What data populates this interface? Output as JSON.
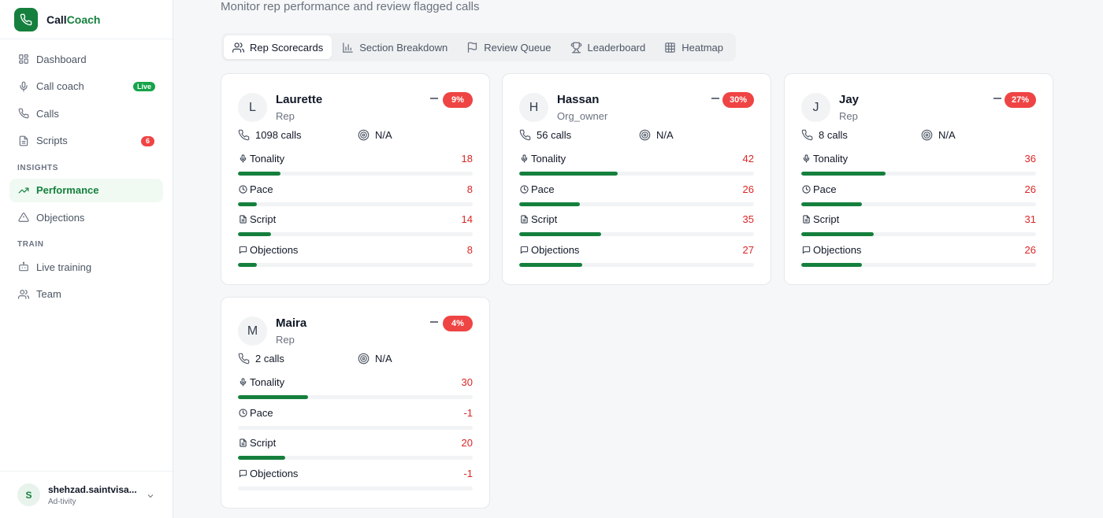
{
  "app": {
    "brand_prefix": "Call",
    "brand_accent": "Coach"
  },
  "colors": {
    "accent": "#15803d",
    "danger": "#ef4444",
    "bar_track": "#f1f3f5"
  },
  "sidebar": {
    "items": [
      {
        "label": "Dashboard",
        "icon": "dashboard-icon"
      },
      {
        "label": "Call coach",
        "icon": "mic-icon",
        "badge": "Live"
      },
      {
        "label": "Calls",
        "icon": "phone-icon"
      },
      {
        "label": "Scripts",
        "icon": "document-icon",
        "badge": "6"
      }
    ],
    "section_insights": "INSIGHTS",
    "insights": [
      {
        "label": "Performance",
        "icon": "trending-up-icon",
        "active": true
      },
      {
        "label": "Objections",
        "icon": "warning-icon"
      }
    ],
    "section_train": "TRAIN",
    "train": [
      {
        "label": "Live training",
        "icon": "bot-icon"
      },
      {
        "label": "Team",
        "icon": "users-icon"
      }
    ],
    "user": {
      "initial": "S",
      "name": "shehzad.saintvisa...",
      "org": "Ad-tivity"
    }
  },
  "main": {
    "subtitle": "Monitor rep performance and review flagged calls",
    "tabs": [
      {
        "label": "Rep Scorecards",
        "icon": "users-icon",
        "active": true
      },
      {
        "label": "Section Breakdown",
        "icon": "bar-chart-icon"
      },
      {
        "label": "Review Queue",
        "icon": "flag-icon"
      },
      {
        "label": "Leaderboard",
        "icon": "trophy-icon"
      },
      {
        "label": "Heatmap",
        "icon": "grid-icon"
      }
    ],
    "metric_labels": {
      "tonality": "Tonality",
      "pace": "Pace",
      "script": "Script",
      "objections": "Objections"
    },
    "reps": [
      {
        "initial": "L",
        "name": "Laurette",
        "role": "Rep",
        "trend": "9%",
        "calls": "1098 calls",
        "score": "N/A",
        "metrics": {
          "tonality": 18,
          "pace": 8,
          "script": 14,
          "objections": 8
        }
      },
      {
        "initial": "H",
        "name": "Hassan",
        "role": "Org_owner",
        "trend": "30%",
        "calls": "56 calls",
        "score": "N/A",
        "metrics": {
          "tonality": 42,
          "pace": 26,
          "script": 35,
          "objections": 27
        }
      },
      {
        "initial": "J",
        "name": "Jay",
        "role": "Rep",
        "trend": "27%",
        "calls": "8 calls",
        "score": "N/A",
        "metrics": {
          "tonality": 36,
          "pace": 26,
          "script": 31,
          "objections": 26
        }
      },
      {
        "initial": "M",
        "name": "Maira",
        "role": "Rep",
        "trend": "4%",
        "calls": "2 calls",
        "score": "N/A",
        "metrics": {
          "tonality": 30,
          "pace": -1,
          "script": 20,
          "objections": -1
        }
      }
    ]
  }
}
